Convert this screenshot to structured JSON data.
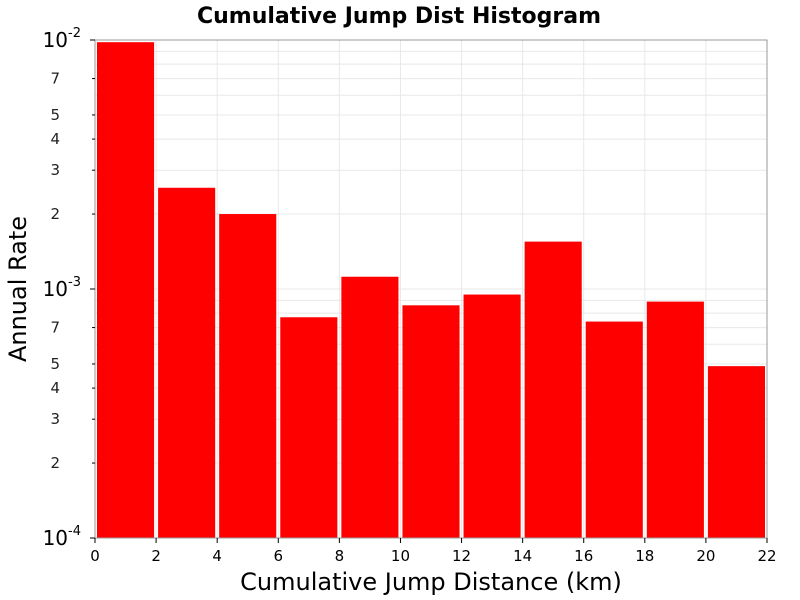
{
  "chart_data": {
    "type": "bar",
    "title": "Cumulative Jump Dist Histogram",
    "xlabel": "Cumulative Jump Distance (km)",
    "ylabel": "Annual Rate",
    "x_scale": "linear",
    "y_scale": "log",
    "xlim": [
      0,
      22
    ],
    "ylim": [
      0.0001,
      0.01
    ],
    "grid": true,
    "bar_color": "#ff0000",
    "bin_width": 2,
    "x_ticks": [
      "0",
      "2",
      "4",
      "6",
      "8",
      "10",
      "12",
      "14",
      "16",
      "18",
      "20",
      "22"
    ],
    "y_decade_ticks": [
      {
        "base": "10",
        "exp": "-4",
        "value": 0.0001
      },
      {
        "base": "10",
        "exp": "-3",
        "value": 0.001
      },
      {
        "base": "10",
        "exp": "-2",
        "value": 0.01
      }
    ],
    "y_minor_labels": [
      {
        "label": "2",
        "value": 0.0002
      },
      {
        "label": "3",
        "value": 0.0003
      },
      {
        "label": "4",
        "value": 0.0004
      },
      {
        "label": "5",
        "value": 0.0005
      },
      {
        "label": "7",
        "value": 0.0007
      },
      {
        "label": "2",
        "value": 0.002
      },
      {
        "label": "3",
        "value": 0.003
      },
      {
        "label": "4",
        "value": 0.004
      },
      {
        "label": "5",
        "value": 0.005
      },
      {
        "label": "7",
        "value": 0.007
      }
    ],
    "bins": [
      {
        "x_start": 0,
        "x_end": 2,
        "value": 0.0098
      },
      {
        "x_start": 2,
        "x_end": 4,
        "value": 0.00255
      },
      {
        "x_start": 4,
        "x_end": 6,
        "value": 0.002
      },
      {
        "x_start": 6,
        "x_end": 8,
        "value": 0.00077
      },
      {
        "x_start": 8,
        "x_end": 10,
        "value": 0.00112
      },
      {
        "x_start": 10,
        "x_end": 12,
        "value": 0.00086
      },
      {
        "x_start": 12,
        "x_end": 14,
        "value": 0.00095
      },
      {
        "x_start": 14,
        "x_end": 16,
        "value": 0.00155
      },
      {
        "x_start": 16,
        "x_end": 18,
        "value": 0.00074
      },
      {
        "x_start": 18,
        "x_end": 20,
        "value": 0.00089
      },
      {
        "x_start": 20,
        "x_end": 22,
        "value": 0.00049
      }
    ]
  }
}
